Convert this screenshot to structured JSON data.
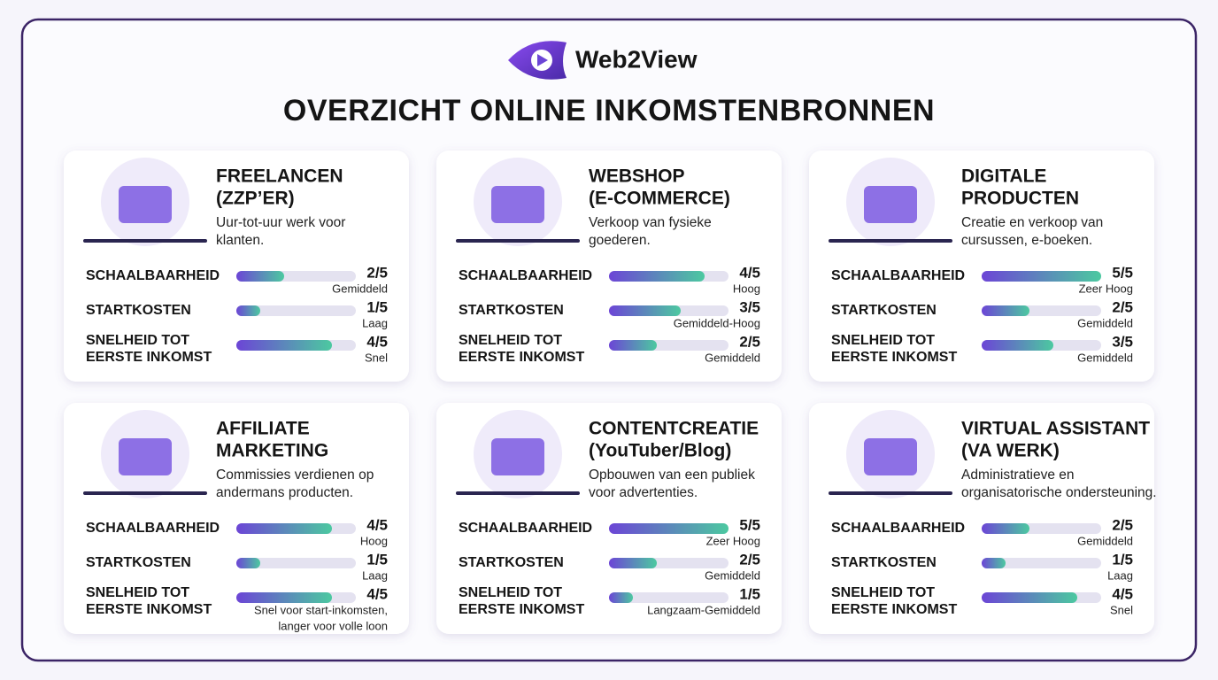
{
  "header": {
    "logo": "Web2View",
    "title": "OVERZICHT ONLINE INKOMSTENBRONNEN"
  },
  "xlim": [
    0,
    5
  ],
  "cards": [
    {
      "title": [
        "FREELANCEN",
        "(ZZP’ER)"
      ],
      "description": [
        "Uur-tot-uur werk voor",
        "klanten."
      ],
      "metrics": [
        {
          "label": [
            "SCHAALBAARHEID"
          ],
          "score": {
            "value": 2,
            "label": "2/5"
          },
          "level": [
            "Gemiddeld"
          ]
        },
        {
          "label": [
            "STARTKOSTEN"
          ],
          "score": {
            "value": 1,
            "label": "1/5"
          },
          "level": [
            "Laag"
          ]
        },
        {
          "label": [
            "SNELHEID TOT",
            "EERSTE INKOMST"
          ],
          "score": {
            "value": 4,
            "label": "4/5"
          },
          "level": [
            "Snel"
          ]
        }
      ]
    },
    {
      "title": [
        "WEBSHOP",
        "(E-COMMERCE)"
      ],
      "description": [
        "Verkoop van fysieke",
        "goederen."
      ],
      "metrics": [
        {
          "label": [
            "SCHAALBAARHEID"
          ],
          "score": {
            "value": 4,
            "label": "4/5"
          },
          "level": [
            "Hoog"
          ]
        },
        {
          "label": [
            "STARTKOSTEN"
          ],
          "score": {
            "value": 3,
            "label": "3/5"
          },
          "level": [
            "Gemiddeld-Hoog"
          ]
        },
        {
          "label": [
            "SNELHEID TOT",
            "EERSTE INKOMST"
          ],
          "score": {
            "value": 2,
            "label": "2/5"
          },
          "level": [
            "Gemiddeld"
          ]
        }
      ]
    },
    {
      "title": [
        "DIGITALE",
        "PRODUCTEN"
      ],
      "description": [
        "Creatie en verkoop van",
        "cursussen, e-boeken."
      ],
      "metrics": [
        {
          "label": [
            "SCHAALBAARHEID"
          ],
          "score": {
            "value": 5,
            "label": "5/5"
          },
          "level": [
            "Zeer Hoog"
          ]
        },
        {
          "label": [
            "STARTKOSTEN"
          ],
          "score": {
            "value": 2,
            "label": "2/5"
          },
          "level": [
            "Gemiddeld"
          ]
        },
        {
          "label": [
            "SNELHEID TOT",
            "EERSTE INKOMST"
          ],
          "score": {
            "value": 3,
            "label": "3/5"
          },
          "level": [
            "Gemiddeld"
          ]
        }
      ]
    },
    {
      "title": [
        "AFFILIATE",
        "MARKETING"
      ],
      "description": [
        "Commissies verdienen op",
        "andermans producten."
      ],
      "metrics": [
        {
          "label": [
            "SCHAALBAARHEID"
          ],
          "score": {
            "value": 4,
            "label": "4/5"
          },
          "level": [
            "Hoog"
          ]
        },
        {
          "label": [
            "STARTKOSTEN"
          ],
          "score": {
            "value": 1,
            "label": "1/5"
          },
          "level": [
            "Laag"
          ]
        },
        {
          "label": [
            "SNELHEID TOT",
            "EERSTE INKOMST"
          ],
          "score": {
            "value": 4,
            "label": "4/5"
          },
          "level": [
            "Snel voor start-inkomsten,",
            "langer voor volle loon"
          ]
        }
      ]
    },
    {
      "title": [
        "CONTENTCREATIE",
        "(YouTuber/Blog)"
      ],
      "description": [
        "Opbouwen van een publiek",
        "voor advertenties."
      ],
      "metrics": [
        {
          "label": [
            "SCHAALBAARHEID"
          ],
          "score": {
            "value": 5,
            "label": "5/5"
          },
          "level": [
            "Zeer Hoog"
          ]
        },
        {
          "label": [
            "STARTKOSTEN"
          ],
          "score": {
            "value": 2,
            "label": "2/5"
          },
          "level": [
            "Gemiddeld"
          ]
        },
        {
          "label": [
            "SNELHEID TOT",
            "EERSTE INKOMST"
          ],
          "score": {
            "value": 1,
            "label": "1/5"
          },
          "level": [
            "Langzaam-Gemiddeld"
          ]
        }
      ]
    },
    {
      "title": [
        "VIRTUAL ASSISTANT",
        "(VA WERK)"
      ],
      "description": [
        "Administratieve en",
        "organisatorische ondersteuning."
      ],
      "metrics": [
        {
          "label": [
            "SCHAALBAARHEID"
          ],
          "score": {
            "value": 2,
            "label": "2/5"
          },
          "level": [
            "Gemiddeld"
          ]
        },
        {
          "label": [
            "STARTKOSTEN"
          ],
          "score": {
            "value": 1,
            "label": "1/5"
          },
          "level": [
            "Laag"
          ]
        },
        {
          "label": [
            "SNELHEID TOT",
            "EERSTE INKOMST"
          ],
          "score": {
            "value": 4,
            "label": "4/5"
          },
          "level": [
            "Snel"
          ]
        }
      ]
    }
  ]
}
